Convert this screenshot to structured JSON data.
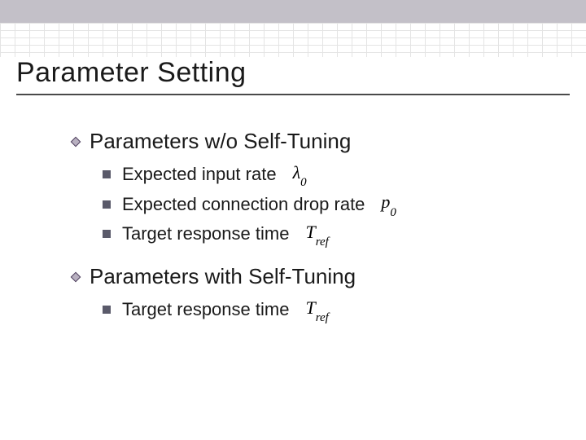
{
  "colors": {
    "topbar": "#c3c0c8",
    "grid": "#d9d9d9",
    "text": "#1a1a1a",
    "bullet_square": "#5a5a6a",
    "diamond_fill": "#b8b0c0",
    "diamond_stroke": "#4a3a5a",
    "underline": "#4a4a4a",
    "background": "#ffffff"
  },
  "typography": {
    "title_fontsize": 34,
    "level1_fontsize": 26,
    "level2_fontsize": 22,
    "math_family": "Times New Roman"
  },
  "title": "Parameter Setting",
  "sections": [
    {
      "heading": "Parameters w/o Self-Tuning",
      "items": [
        {
          "label": "Expected input rate",
          "symbol_html": "λ<sub>0</sub>"
        },
        {
          "label": "Expected connection drop rate",
          "symbol_html": "p<sub>0</sub>"
        },
        {
          "label": "Target response time",
          "symbol_html": "T<sub>ref</sub>"
        }
      ]
    },
    {
      "heading": "Parameters with Self-Tuning",
      "items": [
        {
          "label": "Target response time",
          "symbol_html": "T<sub>ref</sub>"
        }
      ]
    }
  ]
}
